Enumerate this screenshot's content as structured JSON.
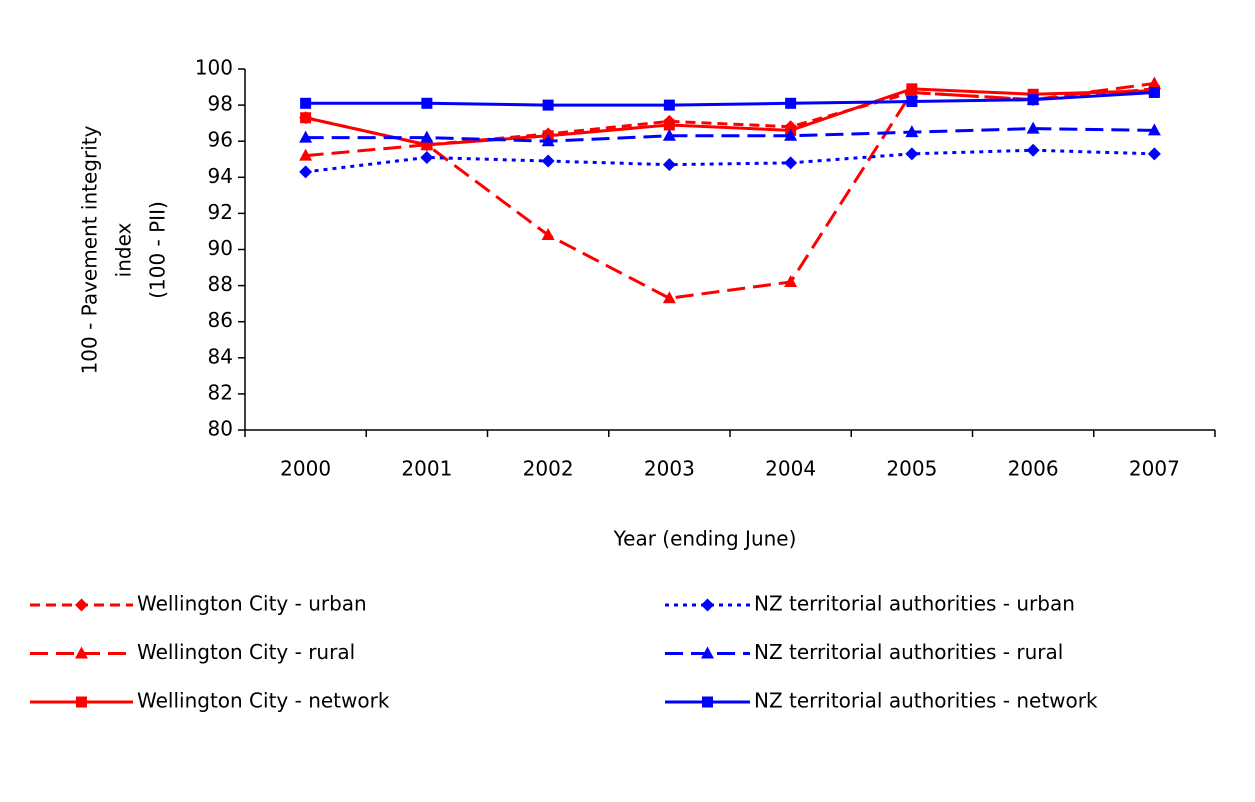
{
  "chart_data": {
    "type": "line",
    "x_label": "Year (ending June)",
    "y_label": [
      "100 - Pavement integrity",
      "index",
      "(100 - PII)"
    ],
    "categories": [
      "2000",
      "2001",
      "2002",
      "2003",
      "2004",
      "2005",
      "2006",
      "2007"
    ],
    "ylim": [
      80,
      100
    ],
    "yticks": [
      80,
      82,
      84,
      86,
      88,
      90,
      92,
      94,
      96,
      98,
      100
    ],
    "series": [
      {
        "name": "Wellington City - urban",
        "color": "#ff0000",
        "marker": "diamond",
        "dash": "dash-short",
        "values": [
          97.3,
          95.8,
          96.4,
          97.1,
          96.8,
          98.7,
          98.3,
          98.9
        ]
      },
      {
        "name": "Wellington City - rural",
        "color": "#ff0000",
        "marker": "triangle",
        "dash": "dash-long",
        "values": [
          95.2,
          95.8,
          90.8,
          87.3,
          88.2,
          98.7,
          98.3,
          99.2
        ]
      },
      {
        "name": "Wellington City - network",
        "color": "#ff0000",
        "marker": "square",
        "dash": "solid",
        "values": [
          97.3,
          95.8,
          96.3,
          96.9,
          96.6,
          98.9,
          98.6,
          98.8
        ]
      },
      {
        "name": "NZ territorial authorities - urban",
        "color": "#0000ff",
        "marker": "diamond",
        "dash": "dot",
        "values": [
          94.3,
          95.1,
          94.9,
          94.7,
          94.8,
          95.3,
          95.5,
          95.3
        ]
      },
      {
        "name": "NZ territorial authorities - rural",
        "color": "#0000ff",
        "marker": "triangle",
        "dash": "dash-long",
        "values": [
          96.2,
          96.2,
          96.0,
          96.3,
          96.3,
          96.5,
          96.7,
          96.6
        ]
      },
      {
        "name": "NZ territorial authorities - network",
        "color": "#0000ff",
        "marker": "square",
        "dash": "solid",
        "values": [
          98.1,
          98.1,
          98.0,
          98.0,
          98.1,
          98.2,
          98.3,
          98.7
        ]
      }
    ]
  }
}
